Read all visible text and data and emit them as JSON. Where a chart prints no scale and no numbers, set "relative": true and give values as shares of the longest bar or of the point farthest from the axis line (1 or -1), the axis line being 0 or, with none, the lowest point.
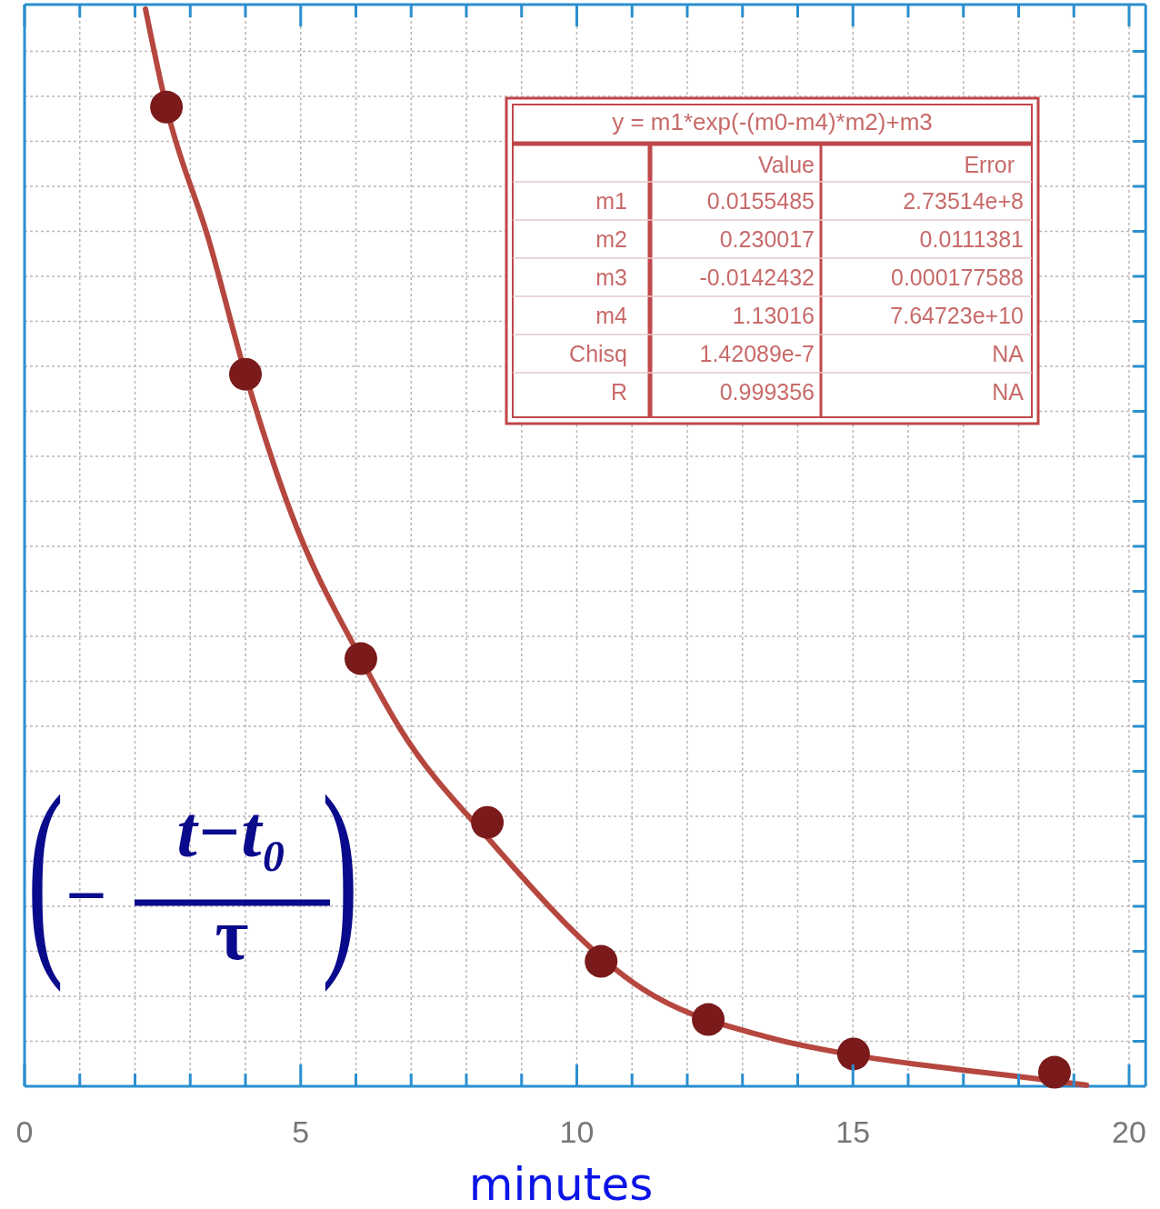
{
  "chart_data": {
    "type": "scatter",
    "relative": true,
    "xlabel": "minutes",
    "xlim": [
      0,
      20.3
    ],
    "xticks": [
      0,
      {
        "value": 1,
        "label": null
      },
      {
        "value": 2,
        "label": null
      },
      {
        "value": 3,
        "label": null
      },
      {
        "value": 4,
        "label": null
      },
      5,
      {
        "value": 6,
        "label": null
      },
      {
        "value": 7,
        "label": null
      },
      {
        "value": 8,
        "label": null
      },
      {
        "value": 9,
        "label": null
      },
      10,
      {
        "value": 11,
        "label": null
      },
      {
        "value": 12,
        "label": null
      },
      {
        "value": 13,
        "label": null
      },
      {
        "value": 14,
        "label": null
      },
      15,
      {
        "value": 16,
        "label": null
      },
      {
        "value": 17,
        "label": null
      },
      {
        "value": 18,
        "label": null
      },
      {
        "value": 19,
        "label": null
      },
      20
    ],
    "grid": true,
    "series": [
      {
        "type": "line",
        "color": "#b5473f",
        "marker": "none",
        "line_style": "solid",
        "x": [
          2.19,
          2.57,
          3.34,
          4.0,
          4.82,
          6.09,
          6.8,
          8.38,
          11.2,
          13.5,
          15.01,
          17.0,
          18.0,
          19.23
        ],
        "values": [
          1.0,
          0.909,
          0.785,
          0.661,
          0.533,
          0.397,
          0.332,
          0.231,
          0.09,
          0.045,
          0.029,
          0.015,
          0.009,
          0.001
        ]
      },
      {
        "type": "scatter",
        "color": "#7a1a1a",
        "marker": "circle",
        "x": [
          2.57,
          4.0,
          6.09,
          8.38,
          10.44,
          12.38,
          15.01,
          18.65
        ],
        "values": [
          0.909,
          0.661,
          0.397,
          0.245,
          0.116,
          0.062,
          0.03,
          0.013
        ]
      }
    ],
    "annotations": [
      "y = m1*exp(-(m0-m4)*m2)+m3",
      "Value",
      "Error",
      "m1",
      "0.0155485",
      "2.73514e+8",
      "m2",
      "0.230017",
      "0.0111381",
      "m3",
      "-0.0142432",
      "0.000177588",
      "m4",
      "1.13016",
      "7.64723e+10",
      "Chisq",
      "1.42089e-7",
      "NA",
      "R",
      "0.999356",
      "NA",
      "(",
      "−",
      "t−t₀",
      "τ",
      ")"
    ]
  }
}
